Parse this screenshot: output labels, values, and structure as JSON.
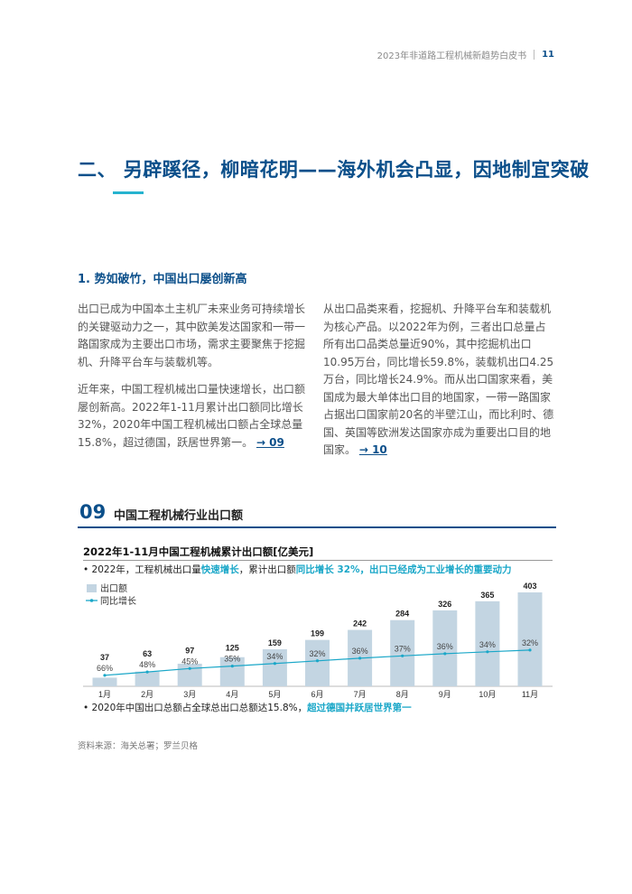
{
  "header": {
    "doc_title": "2023年非道路工程机械新趋势白皮书",
    "page_number": "11"
  },
  "title": "二、 另辟蹊径，柳暗花明——海外机会凸显，因地制宜突破",
  "section": "1. 势如破竹，中国出口屡创新高",
  "col1": {
    "p1": "出口已成为中国本土主机厂未来业务可持续增长的关键驱动力之一，其中欧美发达国家和一带一路国家成为主要出口市场，需求主要聚焦于挖掘机、升降平台车与装载机等。",
    "p2": "近年来，中国工程机械出口量快速增长，出口额屡创新高。2022年1-11月累计出口额同比增长32%，2020年中国工程机械出口额占全球总量15.8%，超过德国，跃居世界第一。",
    "ref": "→ 09"
  },
  "col2": {
    "p1": "从出口品类来看，挖掘机、升降平台车和装载机为核心产品。以2022年为例，三者出口总量占所有出口品类总量近90%，其中挖掘机出口10.95万台，同比增长59.8%，装载机出口4.25万台，同比增长24.9%。而从出口国家来看，美国成为最大单体出口目的地国家，一带一路国家占据出口国家前20名的半壁江山，而比利时、德国、英国等欧洲发达国家亦成为重要出口目的地国家。",
    "ref": "→ 10"
  },
  "figure": {
    "number": "09",
    "title": "中国工程机械行业出口额"
  },
  "bullet1": {
    "a": "• 2022年，工程机械出口量",
    "b": "快速增长",
    "c": "，累计出口额",
    "d": "同比增长 32%，出口已经成为工业增长的重要动力"
  },
  "bullet2": {
    "a": "• 2020年中国出口总额占全球总出口总额达15.8%，",
    "b": "超过德国并跃居世界第一"
  },
  "source": "资料来源：海关总署；罗兰贝格",
  "chart_data": {
    "type": "bar",
    "title": "2022年1-11月中国工程机械累计出口额[亿美元]",
    "categories": [
      "1月",
      "2月",
      "3月",
      "4月",
      "5月",
      "6月",
      "7月",
      "8月",
      "9月",
      "10月",
      "11月"
    ],
    "series": [
      {
        "name": "出口额",
        "type": "bar",
        "values": [
          37,
          63,
          97,
          125,
          159,
          199,
          242,
          284,
          326,
          365,
          403
        ],
        "color": "#c3d5e2"
      },
      {
        "name": "同比增长",
        "type": "line",
        "values": [
          "66%",
          "48%",
          "45%",
          "35%",
          "34%",
          "32%",
          "36%",
          "37%",
          "36%",
          "34%",
          "32%"
        ],
        "color": "#1aa7c8"
      }
    ],
    "legend": "top-left"
  }
}
